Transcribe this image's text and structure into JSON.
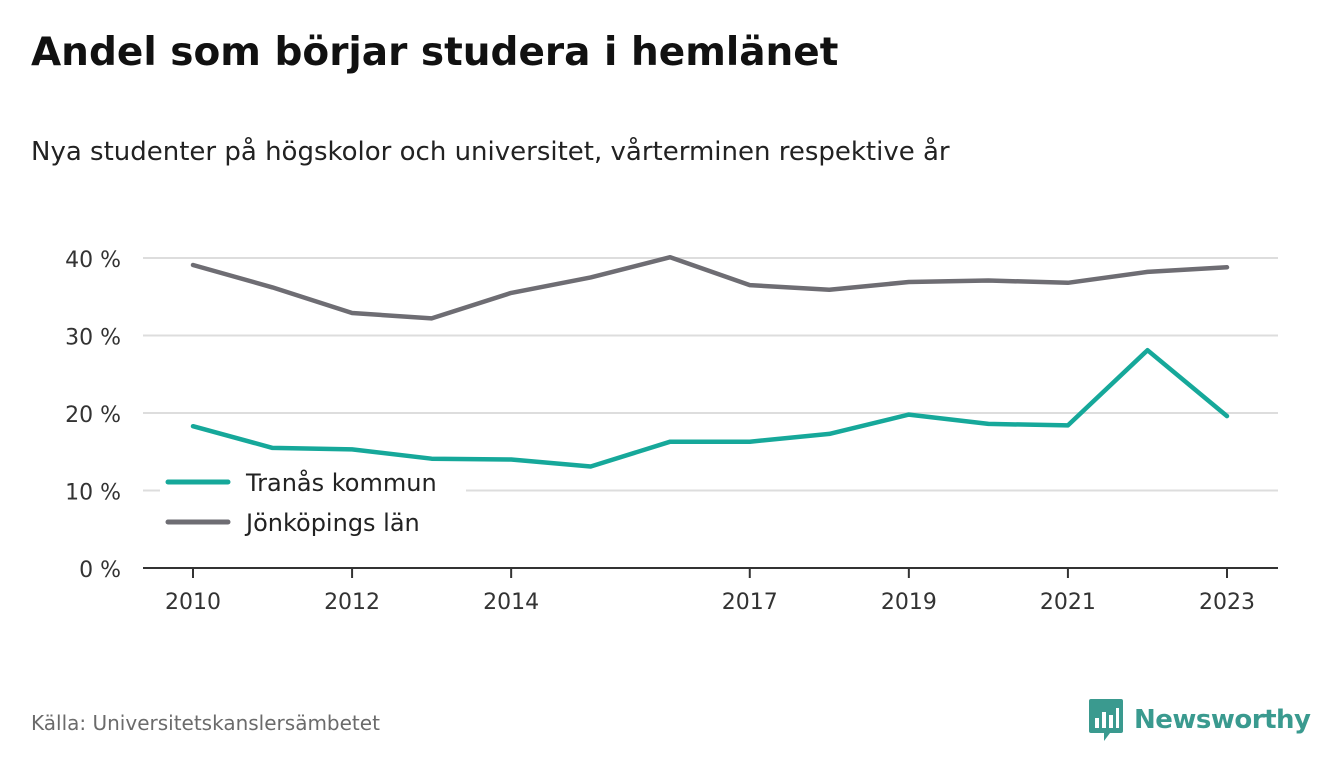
{
  "header": {
    "title": "Andel som börjar studera i hemlänet",
    "subtitle": "Nya studenter på högskolor och universitet, vårterminen respektive år"
  },
  "footer": {
    "source": "Källa: Universitetskanslersämbetet",
    "brand": "Newsworthy",
    "brand_icon": "bar-chart-speech-bubble-icon"
  },
  "colors": {
    "series_1": "#16a89a",
    "series_2": "#6e6d73",
    "grid": "#dddddd",
    "axis": "#333333",
    "brand": "#3a9a8f"
  },
  "chart_data": {
    "type": "line",
    "x": [
      2010,
      2011,
      2012,
      2013,
      2014,
      2015,
      2016,
      2017,
      2018,
      2019,
      2020,
      2021,
      2022,
      2023
    ],
    "x_ticks": [
      2010,
      2012,
      2014,
      2017,
      2019,
      2021,
      2023
    ],
    "y_ticks": [
      0,
      10,
      20,
      30,
      40
    ],
    "y_tick_labels": [
      "0 %",
      "10 %",
      "20 %",
      "30 %",
      "40 %"
    ],
    "ylim": [
      0,
      40
    ],
    "grid": true,
    "legend_position": "bottom-left",
    "series": [
      {
        "name": "Tranås kommun",
        "values": [
          18.3,
          15.5,
          15.3,
          14.1,
          14.0,
          13.1,
          16.3,
          16.3,
          17.3,
          19.8,
          18.6,
          18.4,
          28.1,
          19.6
        ]
      },
      {
        "name": "Jönköpings län",
        "values": [
          39.1,
          36.2,
          32.9,
          32.2,
          35.5,
          37.5,
          40.1,
          36.5,
          35.9,
          36.9,
          37.1,
          36.8,
          38.2,
          38.8
        ]
      }
    ]
  }
}
